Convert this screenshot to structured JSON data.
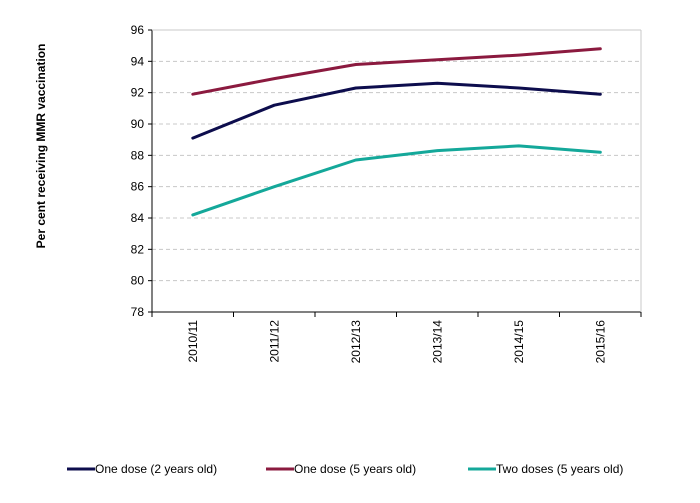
{
  "chart_data": {
    "type": "line",
    "title": "",
    "xlabel": "",
    "ylabel": "Per cent receiving MMR vaccination",
    "categories": [
      "2010/11",
      "2011/12",
      "2012/13",
      "2013/14",
      "2014/15",
      "2015/16"
    ],
    "ylim": [
      78,
      96
    ],
    "yticks": [
      78,
      80,
      82,
      84,
      86,
      88,
      90,
      92,
      94,
      96
    ],
    "grid": true,
    "legend_position": "bottom",
    "series": [
      {
        "name": "One dose (2 years old)",
        "color": "#0d0d4d",
        "values": [
          89.1,
          91.2,
          92.3,
          92.6,
          92.3,
          91.9
        ]
      },
      {
        "name": "One dose (5 years old)",
        "color": "#8b1a3f",
        "values": [
          91.9,
          92.9,
          93.8,
          94.1,
          94.4,
          94.8
        ]
      },
      {
        "name": "Two doses (5 years old)",
        "color": "#14a89a",
        "values": [
          84.2,
          86.0,
          87.7,
          88.3,
          88.6,
          88.2
        ]
      }
    ]
  }
}
